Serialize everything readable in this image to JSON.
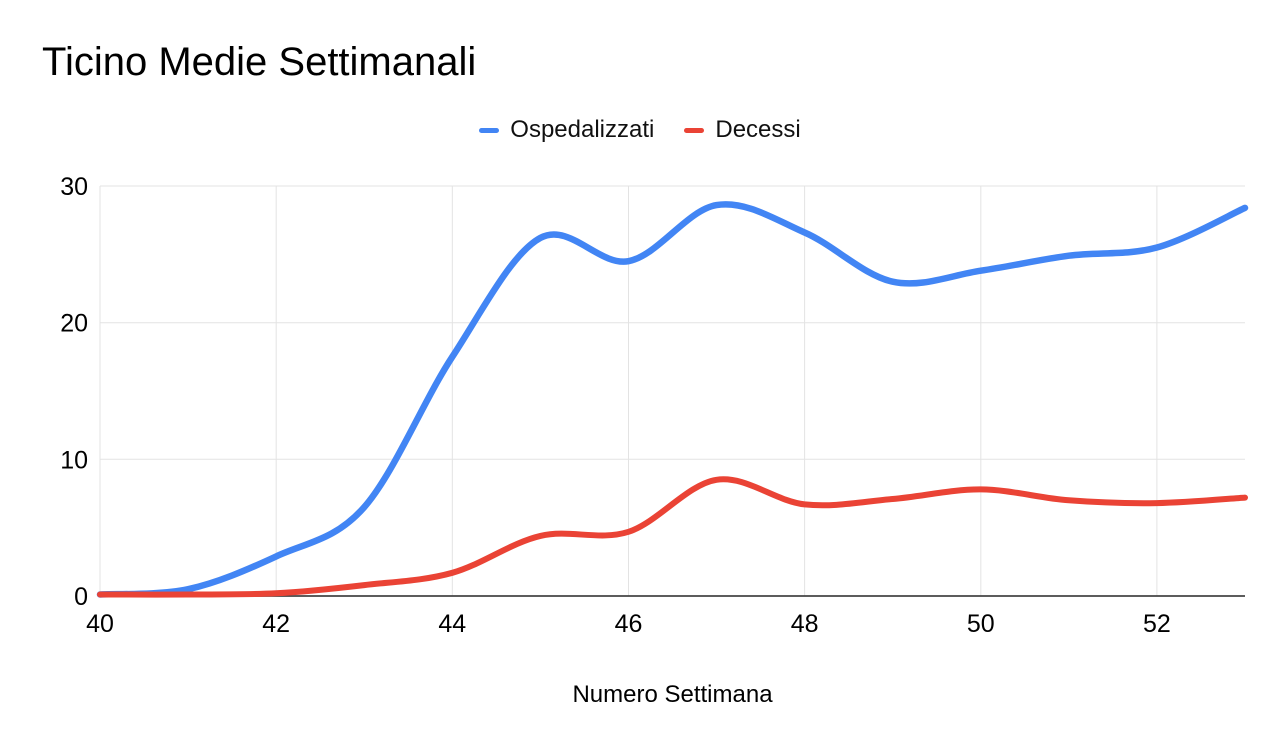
{
  "page": {
    "background": "#ffffff"
  },
  "chart_data": {
    "type": "line",
    "title": "Ticino Medie Settimanali",
    "xlabel": "Numero Settimana",
    "ylabel": "",
    "x": [
      40,
      41,
      42,
      43,
      44,
      45,
      46,
      47,
      48,
      49,
      50,
      51,
      52,
      53
    ],
    "series": [
      {
        "name": "Ospedalizzati",
        "color": "#4285f4",
        "values": [
          0.1,
          0.5,
          2.9,
          6.5,
          17.5,
          26.2,
          24.5,
          28.6,
          26.6,
          23,
          23.8,
          24.9,
          25.5,
          28.4
        ]
      },
      {
        "name": "Decessi",
        "color": "#ea4335",
        "values": [
          0.05,
          0.05,
          0.2,
          0.8,
          1.7,
          4.4,
          4.7,
          8.5,
          6.7,
          7.1,
          7.8,
          7.0,
          6.8,
          7.2
        ]
      }
    ],
    "xticks": [
      40,
      42,
      44,
      46,
      48,
      50,
      52
    ],
    "yticks": [
      0,
      10,
      20,
      30
    ],
    "xlim": [
      40,
      53
    ],
    "ylim": [
      0,
      30
    ],
    "grid": true,
    "smooth": true,
    "legend_position": "top"
  },
  "colors": {
    "grid": "#e3e3e3",
    "axis": "#454545",
    "tick_text": "#000000"
  }
}
